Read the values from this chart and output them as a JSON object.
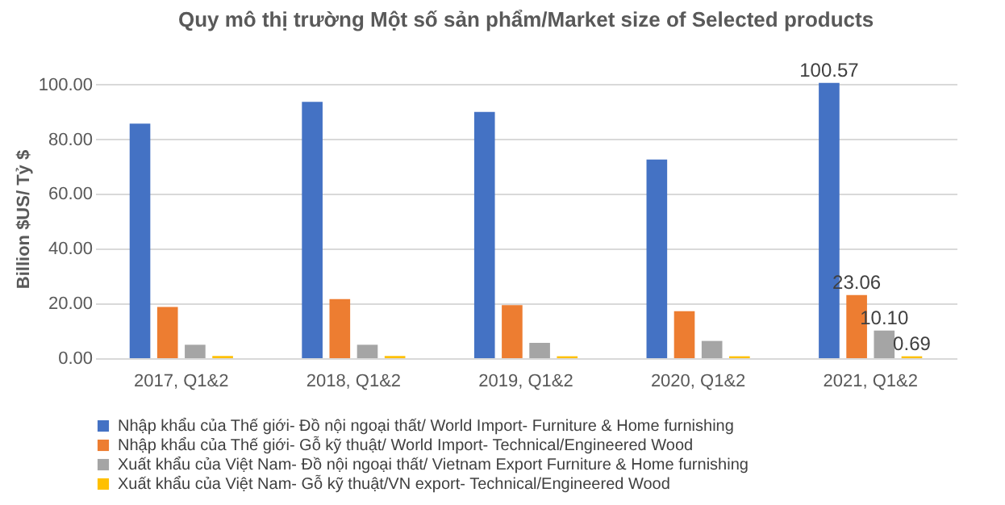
{
  "chart_data": {
    "type": "bar",
    "title": "Quy mô thị trường Một số sản phẩm/Market size of Selected products",
    "ylabel": "Billion $US/ Tỷ $",
    "categories": [
      "2017, Q1&2",
      "2018, Q1&2",
      "2019, Q1&2",
      "2020, Q1&2",
      "2021, Q1&2"
    ],
    "series": [
      {
        "name": "Nhập khẩu của Thế giới- Đồ nội ngoại thất/ World Import- Furniture & Home furnishing",
        "color": "#4472c4",
        "values": [
          85.7,
          93.7,
          90.0,
          72.6,
          100.57
        ],
        "value_labels": [
          null,
          null,
          null,
          null,
          "100.57"
        ]
      },
      {
        "name": "Nhập khẩu của Thế giới- Gỗ kỹ thuật/ World Import- Technical/Engineered Wood",
        "color": "#ed7d31",
        "values": [
          18.7,
          21.6,
          19.4,
          17.2,
          23.06
        ],
        "value_labels": [
          null,
          null,
          null,
          null,
          "23.06"
        ]
      },
      {
        "name": "Xuất khẩu của Việt Nam- Đồ nội ngoại thất/ Vietnam Export Furniture & Home furnishing",
        "color": "#a5a5a5",
        "values": [
          4.9,
          4.9,
          5.6,
          6.3,
          10.1
        ],
        "value_labels": [
          null,
          null,
          null,
          null,
          "10.10"
        ]
      },
      {
        "name": "Xuất khẩu của Việt Nam- Gỗ kỹ thuật/VN export- Technical/Engineered Wood",
        "color": "#ffc000",
        "values": [
          0.8,
          0.8,
          0.7,
          0.7,
          0.69
        ],
        "value_labels": [
          null,
          null,
          null,
          null,
          "0.69"
        ]
      }
    ],
    "ylim": [
      0,
      102
    ],
    "yticks": [
      {
        "value": 0,
        "label": "0.00"
      },
      {
        "value": 20,
        "label": "20.00"
      },
      {
        "value": 40,
        "label": "40.00"
      },
      {
        "value": 60,
        "label": "60.00"
      },
      {
        "value": 80,
        "label": "80.00"
      },
      {
        "value": 100,
        "label": "100.00"
      }
    ],
    "grid": "y",
    "legend": "bottom"
  }
}
